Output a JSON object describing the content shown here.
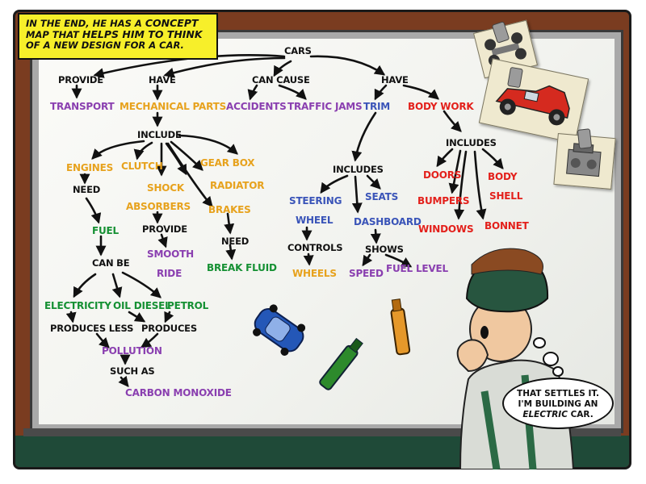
{
  "caption": {
    "part1": "IN THE END, HE HAS A ",
    "concept": "CONCEPT",
    "part2": " MAP THAT ",
    "helps": "HELPS HIM TO THINK",
    "part3": " OF A NEW DESIGN FOR A CAR."
  },
  "map": {
    "cars": "CARS",
    "provide": "PROVIDE",
    "transport": "TRANSPORT",
    "have1": "HAVE",
    "mechanical_parts": "MECHANICAL PARTS",
    "can_cause": "CAN CAUSE",
    "accidents": "ACCIDENTS",
    "traffic_jams": "TRAFFIC JAMS",
    "have2": "HAVE",
    "trim": "TRIM",
    "body_work": "BODY WORK",
    "include": "INCLUDE",
    "engines": "ENGINES",
    "clutch": "CLUTCH",
    "gear_box": "GEAR BOX",
    "radiator": "RADIATOR",
    "shock": "SHOCK",
    "absorbers": "ABSORBERS",
    "brakes": "BRAKES",
    "need1": "NEED",
    "provide2": "PROVIDE",
    "need2": "NEED",
    "smooth": "SMOOTH",
    "ride": "RIDE",
    "break_fluid": "BREAK FLUID",
    "fuel": "FUEL",
    "can_be": "CAN BE",
    "electricity": "ELECTRICITY",
    "oil_diesel": "OIL DIESEL",
    "petrol": "PETROL",
    "produces_less": "PRODUCES LESS",
    "produces": "PRODUCES",
    "pollution": "POLLUTION",
    "such_as": "SUCH AS",
    "carbon_monoxide": "CARBON MONOXIDE",
    "includes_trim": "INCLUDES",
    "steering": "STEERING",
    "wheel": "WHEEL",
    "seats": "SEATS",
    "dashboard": "DASHBOARD",
    "controls": "CONTROLS",
    "shows": "SHOWS",
    "wheels": "WHEELS",
    "speed": "SPEED",
    "fuel_level": "FUEL LEVEL",
    "includes_body": "INCLUDES",
    "doors": "DOORS",
    "body": "BODY",
    "shell": "SHELL",
    "bumpers": "BUMPERS",
    "windows": "WINDOWS",
    "bonnet": "BONNET"
  },
  "speech": {
    "line1": "THAT SETTLES IT.",
    "line2": "I'M BUILDING AN",
    "electric": "ELECTRIC",
    "line3_end": " CAR."
  },
  "colors": {
    "link_words": "#111111",
    "purple": "#8a3fb0",
    "orange": "#e7a21d",
    "green": "#159033",
    "blue": "#3a54b8",
    "red": "#e3201b",
    "caption_bg": "#f7ef2a"
  },
  "icons": [
    "pinned-photo-chassis-icon",
    "pinned-photo-red-car-icon",
    "pinned-photo-engine-icon",
    "toy-blue-car-icon",
    "green-marker-icon",
    "orange-marker-icon",
    "thinking-boy-figure"
  ]
}
